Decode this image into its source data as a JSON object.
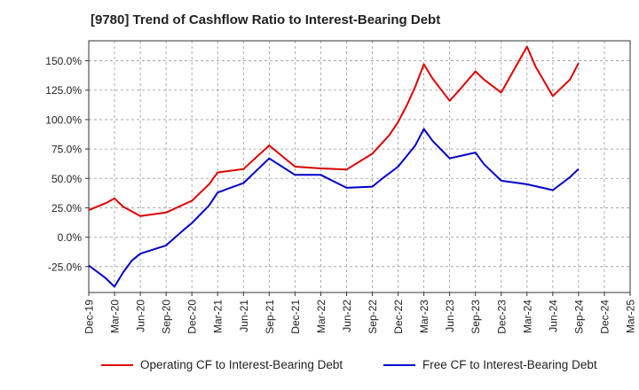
{
  "title": "[9780]  Trend of Cashflow Ratio to Interest-Bearing Debt",
  "chart_data": {
    "type": "line",
    "title": "[9780]  Trend of Cashflow Ratio to Interest-Bearing Debt",
    "x_ticks": [
      "Dec-19",
      "Mar-20",
      "Jun-20",
      "Sep-20",
      "Dec-20",
      "Mar-21",
      "Jun-21",
      "Sep-21",
      "Dec-21",
      "Mar-22",
      "Jun-22",
      "Sep-22",
      "Dec-22",
      "Mar-23",
      "Jun-23",
      "Sep-23",
      "Dec-23",
      "Mar-24",
      "Jun-24",
      "Sep-24",
      "Dec-24",
      "Mar-25"
    ],
    "y_ticks": [
      "-25.0%",
      "0.0%",
      "25.0%",
      "50.0%",
      "75.0%",
      "100.0%",
      "125.0%",
      "150.0%"
    ],
    "y_tick_values": [
      -25,
      0,
      25,
      50,
      75,
      100,
      125,
      150
    ],
    "ylim": [
      -47,
      167
    ],
    "xlim": [
      "2019-12",
      "2025-03"
    ],
    "grid": true,
    "grid_style": "dashed",
    "legend_position": "bottom",
    "series": [
      {
        "name": "Operating CF to Interest-Bearing Debt",
        "color": "#dd0000",
        "points": [
          [
            "2019-12",
            23
          ],
          [
            "2020-02",
            29
          ],
          [
            "2020-03",
            33
          ],
          [
            "2020-04",
            26
          ],
          [
            "2020-06",
            18
          ],
          [
            "2020-09",
            21
          ],
          [
            "2020-12",
            31
          ],
          [
            "2021-01",
            38
          ],
          [
            "2021-02",
            45
          ],
          [
            "2021-03",
            55
          ],
          [
            "2021-06",
            58
          ],
          [
            "2021-09",
            78
          ],
          [
            "2021-12",
            60
          ],
          [
            "2022-03",
            58.5
          ],
          [
            "2022-06",
            57.5
          ],
          [
            "2022-09",
            71
          ],
          [
            "2022-11",
            87
          ],
          [
            "2022-12",
            98
          ],
          [
            "2023-01",
            112
          ],
          [
            "2023-02",
            128
          ],
          [
            "2023-03",
            147
          ],
          [
            "2023-04",
            135
          ],
          [
            "2023-06",
            116
          ],
          [
            "2023-07",
            124
          ],
          [
            "2023-09",
            141
          ],
          [
            "2023-10",
            134
          ],
          [
            "2023-12",
            123
          ],
          [
            "2024-03",
            162
          ],
          [
            "2024-04",
            145
          ],
          [
            "2024-06",
            120
          ],
          [
            "2024-08",
            134
          ],
          [
            "2024-09",
            148
          ]
        ]
      },
      {
        "name": "Free CF to Interest-Bearing Debt",
        "color": "#0000cc",
        "points": [
          [
            "2019-12",
            -24
          ],
          [
            "2020-02",
            -35
          ],
          [
            "2020-03",
            -42
          ],
          [
            "2020-04",
            -30
          ],
          [
            "2020-05",
            -20
          ],
          [
            "2020-06",
            -14
          ],
          [
            "2020-09",
            -7
          ],
          [
            "2020-11",
            6
          ],
          [
            "2020-12",
            12
          ],
          [
            "2021-02",
            27
          ],
          [
            "2021-03",
            38
          ],
          [
            "2021-06",
            46
          ],
          [
            "2021-09",
            67
          ],
          [
            "2021-12",
            53
          ],
          [
            "2022-03",
            53
          ],
          [
            "2022-06",
            42
          ],
          [
            "2022-09",
            43
          ],
          [
            "2022-10",
            49
          ],
          [
            "2022-12",
            60
          ],
          [
            "2023-02",
            78
          ],
          [
            "2023-03",
            92
          ],
          [
            "2023-04",
            82
          ],
          [
            "2023-06",
            67
          ],
          [
            "2023-09",
            72
          ],
          [
            "2023-10",
            62
          ],
          [
            "2023-12",
            48
          ],
          [
            "2024-03",
            45
          ],
          [
            "2024-06",
            40
          ],
          [
            "2024-08",
            51
          ],
          [
            "2024-09",
            58
          ]
        ]
      }
    ]
  }
}
